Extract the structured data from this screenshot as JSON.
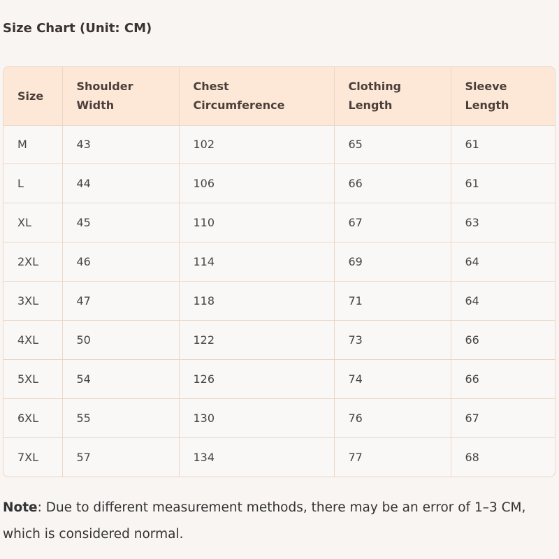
{
  "title": "Size Chart (Unit: CM)",
  "table": {
    "headers": [
      "Size",
      "Shoulder Width",
      "Chest Circumference",
      "Clothing Length",
      "Sleeve Length"
    ],
    "rows": [
      [
        "M",
        43,
        102,
        65,
        61
      ],
      [
        "L",
        44,
        106,
        66,
        61
      ],
      [
        "XL",
        45,
        110,
        67,
        63
      ],
      [
        "2XL",
        46,
        114,
        69,
        64
      ],
      [
        "3XL",
        47,
        118,
        71,
        64
      ],
      [
        "4XL",
        50,
        122,
        73,
        66
      ],
      [
        "5XL",
        54,
        126,
        74,
        66
      ],
      [
        "6XL",
        55,
        130,
        76,
        67
      ],
      [
        "7XL",
        57,
        134,
        77,
        68
      ]
    ]
  },
  "note": {
    "label": "Note",
    "text": ": Due to different measurement methods, there may be an error of 1–3 CM, which is considered normal."
  }
}
